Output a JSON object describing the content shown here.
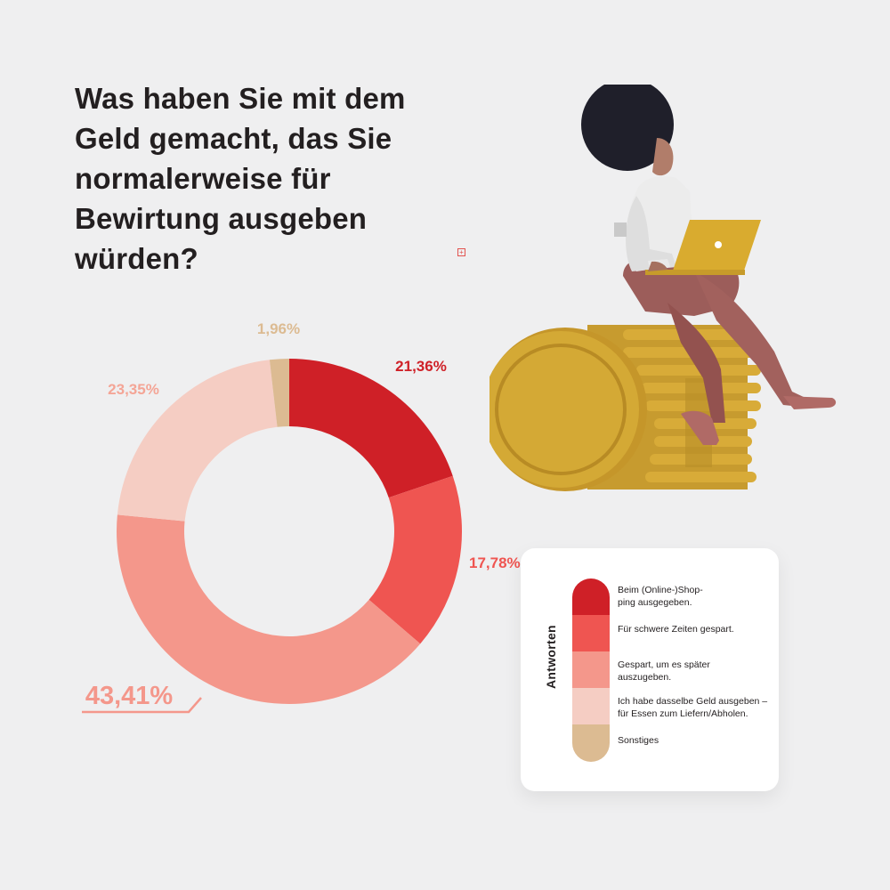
{
  "title": "Was haben Sie mit dem Geld gemacht, das Sie normalerweise für Bewirtung ausgeben würden?",
  "legend": {
    "heading": "Antworten",
    "items": [
      {
        "label": "Beim (Online-)Shop-ping ausgegeben.",
        "color": "#cf2027"
      },
      {
        "label": "Für schwere Zeiten gespart.",
        "color": "#ef5551"
      },
      {
        "label": "Gespart, um es später auszugeben.",
        "color": "#f4978b"
      },
      {
        "label": "Ich habe dasselbe Geld ausgeben – für Essen zum Liefern/Abholen.",
        "color": "#f5cdc3"
      },
      {
        "label": "Sonstiges",
        "color": "#dcbb92"
      }
    ]
  },
  "chart_data": {
    "type": "pie",
    "variant": "donut",
    "title": "Was haben Sie mit dem Geld gemacht, das Sie normalerweise für Bewirtung ausgeben würden?",
    "categories": [
      "Beim (Online-)Shop-ping ausgegeben.",
      "Für schwere Zeiten gespart.",
      "Gespart, um es später auszugeben.",
      "Ich habe dasselbe Geld ausgeben – für Essen zum Liefern/Abholen.",
      "Sonstiges"
    ],
    "values": [
      21.36,
      17.78,
      43.41,
      23.35,
      1.96
    ],
    "labels": [
      "21,36%",
      "17,78%",
      "43,41%",
      "23,35%",
      "1,96%"
    ],
    "colors": [
      "#cf2027",
      "#ef5551",
      "#f4978b",
      "#f5cdc3",
      "#dcbb92"
    ],
    "label_colors": [
      "#cf2027",
      "#ef5551",
      "#f4978b",
      "#f4a596",
      "#dcbb92"
    ],
    "legend_position": "right"
  }
}
